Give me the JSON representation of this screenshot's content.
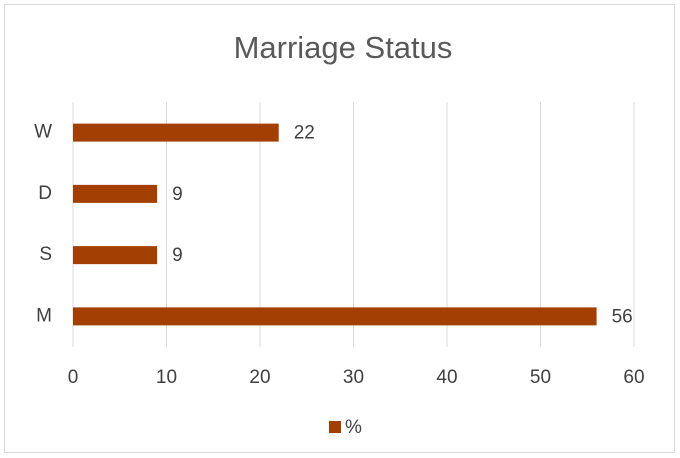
{
  "chart_data": {
    "type": "bar",
    "orientation": "horizontal",
    "title": "Marriage Status",
    "categories": [
      "M",
      "S",
      "D",
      "W"
    ],
    "series": [
      {
        "name": "%",
        "color": "#a33f00",
        "values": [
          56,
          9,
          9,
          22
        ]
      }
    ],
    "xlim": [
      0,
      60
    ],
    "xticks": [
      0,
      10,
      20,
      30,
      40,
      50,
      60
    ],
    "grid": true,
    "legend": "bottom"
  }
}
